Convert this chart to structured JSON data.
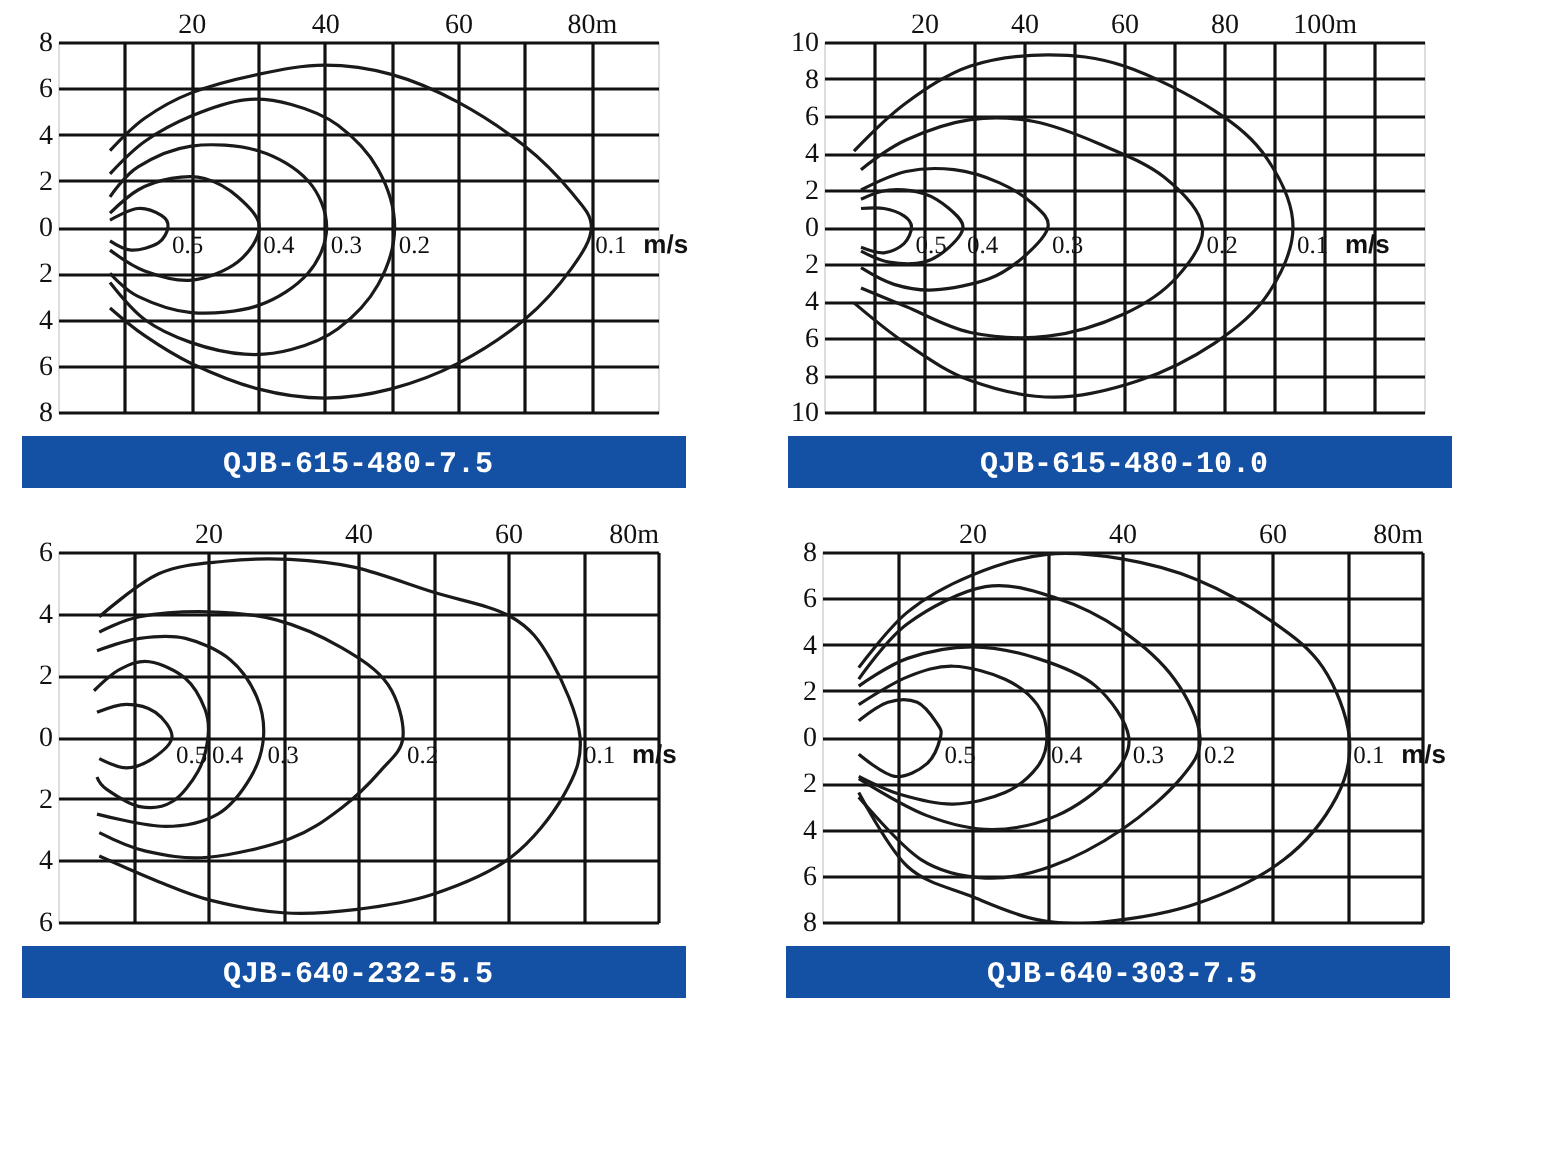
{
  "chart_data": [
    {
      "type": "line",
      "title": "QJB-615-480-7.5",
      "xlim": [
        0,
        90
      ],
      "ylim": [
        -8,
        8
      ],
      "xticks": [
        {
          "value": 10,
          "label": null
        },
        20,
        {
          "value": 30,
          "label": null
        },
        40,
        {
          "value": 50,
          "label": null
        },
        60,
        {
          "value": 70,
          "label": null
        },
        {
          "value": 80,
          "label": "80m"
        }
      ],
      "yticks": [
        {
          "value": -8,
          "label": "8"
        },
        {
          "value": -6,
          "label": "6"
        },
        {
          "value": -4,
          "label": "4"
        },
        {
          "value": -2,
          "label": "2"
        },
        0,
        2,
        4,
        6,
        8
      ],
      "grid": true,
      "line_style": "solid",
      "series": [
        {
          "name": "0.1",
          "color": "#1a1a1a",
          "x": [
            7.8,
            13,
            20,
            30,
            40,
            50,
            60,
            70,
            77,
            80,
            77,
            70,
            60,
            50,
            40,
            30,
            20,
            13,
            7.8
          ],
          "values": [
            3.3,
            4.7,
            5.8,
            6.6,
            7.0,
            6.6,
            5.4,
            3.5,
            1.5,
            0,
            -1.8,
            -4.0,
            -5.9,
            -7.0,
            -7.4,
            -7.0,
            -5.9,
            -4.7,
            -3.5
          ]
        },
        {
          "name": "0.2",
          "color": "#1a1a1a",
          "x": [
            7.8,
            13,
            20,
            28,
            35,
            42,
            48,
            50.5,
            48,
            42,
            35,
            28,
            20,
            13,
            7.8
          ],
          "values": [
            2.3,
            3.7,
            4.8,
            5.5,
            5.3,
            4.4,
            2.5,
            0,
            -2.5,
            -4.4,
            -5.3,
            -5.5,
            -5.0,
            -4.0,
            -2.4
          ]
        },
        {
          "name": "0.3",
          "color": "#1a1a1a",
          "x": [
            7.8,
            12,
            20,
            30,
            37.5,
            40.3,
            37.5,
            30,
            20,
            12,
            7.8
          ],
          "values": [
            1.3,
            2.6,
            3.5,
            3.3,
            2.0,
            0,
            -2.0,
            -3.4,
            -3.7,
            -3.0,
            -2.0
          ]
        },
        {
          "name": "0.4",
          "color": "#1a1a1a",
          "x": [
            7.8,
            12,
            17,
            22,
            27,
            30.2,
            27,
            20,
            13,
            7.8
          ],
          "values": [
            0.6,
            1.6,
            2.1,
            2.1,
            1.3,
            0,
            -1.5,
            -2.3,
            -1.9,
            -1.0
          ]
        },
        {
          "name": "0.5",
          "color": "#1a1a1a",
          "x": [
            7.8,
            12,
            15.5,
            16.5,
            15,
            11,
            7.8
          ],
          "values": [
            0.3,
            0.8,
            0.5,
            0,
            -0.7,
            -1.0,
            -0.6
          ]
        }
      ],
      "annotations": [
        "m/s"
      ]
    },
    {
      "type": "line",
      "title": "QJB-615-480-10.0",
      "xlim": [
        0,
        120
      ],
      "ylim": [
        -10,
        10
      ],
      "xticks": [
        {
          "value": 10,
          "label": null
        },
        20,
        {
          "value": 30,
          "label": null
        },
        40,
        {
          "value": 50,
          "label": null
        },
        60,
        {
          "value": 70,
          "label": null
        },
        80,
        {
          "value": 90,
          "label": null
        },
        {
          "value": 100,
          "label": "100m"
        },
        {
          "value": 110,
          "label": null
        }
      ],
      "yticks": [
        {
          "value": -10,
          "label": "10"
        },
        {
          "value": -8,
          "label": "8"
        },
        {
          "value": -6,
          "label": "6"
        },
        {
          "value": -4,
          "label": "4"
        },
        {
          "value": -2,
          "label": "2"
        },
        0,
        2,
        4,
        6,
        8,
        10
      ],
      "grid": true,
      "line_style": "solid",
      "series": [
        {
          "name": "0.1",
          "color": "#1a1a1a",
          "x": [
            6,
            16.4,
            29.3,
            44.8,
            60,
            78,
            88.6,
            93.8,
            88.6,
            78,
            63,
            46,
            29.3,
            16.4,
            6
          ],
          "values": [
            4.1,
            6.7,
            8.7,
            9.3,
            8.7,
            6.3,
            3.7,
            0,
            -3.7,
            -6.3,
            -8.3,
            -9.2,
            -8.3,
            -6.3,
            -4.1
          ]
        },
        {
          "name": "0.2",
          "color": "#1a1a1a",
          "x": [
            7.4,
            16.4,
            29.3,
            42,
            55,
            68,
            75.7,
            70.6,
            60,
            44.8,
            29.3,
            16.4,
            7.4
          ],
          "values": [
            3.1,
            4.7,
            5.8,
            5.7,
            4.5,
            2.7,
            0,
            -2.7,
            -4.7,
            -5.9,
            -5.7,
            -4.3,
            -3.3
          ]
        },
        {
          "name": "0.3",
          "color": "#1a1a1a",
          "x": [
            7.4,
            16.4,
            26,
            35,
            42,
            44.8,
            40,
            33,
            22,
            14,
            7.4
          ],
          "values": [
            2.0,
            3.0,
            3.1,
            2.4,
            1.2,
            0,
            -1.6,
            -2.8,
            -3.4,
            -3.1,
            -2.2
          ]
        },
        {
          "name": "0.4",
          "color": "#1a1a1a",
          "x": [
            7.4,
            13,
            20,
            25,
            27.8,
            25,
            20,
            13,
            7.4
          ],
          "values": [
            1.5,
            2.0,
            1.8,
            1.0,
            0,
            -1.1,
            -1.9,
            -1.9,
            -1.3
          ]
        },
        {
          "name": "0.5",
          "color": "#1a1a1a",
          "x": [
            7.4,
            12,
            16,
            17.5,
            16,
            12,
            7.4
          ],
          "values": [
            1.0,
            1.0,
            0.6,
            0,
            -0.9,
            -1.4,
            -1.1
          ]
        }
      ],
      "annotations": [
        "m/s"
      ]
    },
    {
      "type": "line",
      "title": "QJB-640-232-5.5",
      "xlim": [
        0,
        80
      ],
      "ylim": [
        -6,
        6
      ],
      "xticks": [
        {
          "value": 10,
          "label": null
        },
        20,
        {
          "value": 30,
          "label": null
        },
        40,
        {
          "value": 50,
          "label": null
        },
        60,
        {
          "value": 70,
          "label": null
        },
        {
          "value": 80,
          "label": "80m"
        }
      ],
      "yticks": [
        {
          "value": -6,
          "label": "6"
        },
        {
          "value": -4,
          "label": "4"
        },
        {
          "value": -2,
          "label": "2"
        },
        0,
        2,
        4,
        6
      ],
      "grid": true,
      "line_style": "solid",
      "series": [
        {
          "name": "0.1",
          "color": "#1a1a1a",
          "x": [
            5.5,
            13.5,
            22.2,
            30.9,
            39.6,
            50,
            60.4,
            65.7,
            69.6,
            67.4,
            60.4,
            50,
            39.6,
            30,
            20.4,
            13.5,
            5.5
          ],
          "values": [
            3.9,
            5.3,
            5.7,
            5.76,
            5.5,
            4.7,
            3.9,
            2.5,
            0,
            -1.9,
            -3.9,
            -5.1,
            -5.6,
            -5.7,
            -5.3,
            -4.7,
            -3.86
          ]
        },
        {
          "name": "0.2",
          "color": "#1a1a1a",
          "x": [
            5.5,
            10.9,
            20,
            29.1,
            37.8,
            44,
            46,
            43,
            37.8,
            30.9,
            20,
            11.7,
            5.5
          ],
          "values": [
            3.4,
            3.9,
            4.06,
            3.8,
            2.9,
            1.7,
            0,
            -1.1,
            -2.3,
            -3.3,
            -3.9,
            -3.7,
            -3.1
          ]
        },
        {
          "name": "0.3",
          "color": "#1a1a1a",
          "x": [
            5.2,
            10.9,
            17,
            23,
            26.5,
            27.4,
            25.7,
            21.3,
            14.3,
            5.2
          ],
          "values": [
            2.8,
            3.2,
            3.2,
            2.5,
            1.3,
            0,
            -1.3,
            -2.5,
            -2.9,
            -2.5
          ]
        },
        {
          "name": "0.4",
          "color": "#1a1a1a",
          "x": [
            4.8,
            8.3,
            12.2,
            17,
            19.6,
            20,
            18.7,
            15.2,
            10.9,
            6.5,
            5.2
          ],
          "values": [
            1.5,
            2.2,
            2.44,
            1.9,
            0.9,
            0,
            -1.1,
            -2.1,
            -2.26,
            -1.7,
            -1.3
          ]
        },
        {
          "name": "0.5",
          "color": "#1a1a1a",
          "x": [
            5.2,
            9.1,
            13,
            15.2,
            12.6,
            9.1,
            5.5
          ],
          "values": [
            0.8,
            1.06,
            0.8,
            0,
            -0.7,
            -1.0,
            -0.7
          ]
        }
      ],
      "annotations": [
        "m/s"
      ]
    },
    {
      "type": "line",
      "title": "QJB-640-303-7.5",
      "xlim": [
        0,
        80
      ],
      "ylim": [
        -8,
        8
      ],
      "xticks": [
        {
          "value": 10,
          "label": null
        },
        20,
        {
          "value": 30,
          "label": null
        },
        40,
        {
          "value": 50,
          "label": null
        },
        60,
        {
          "value": 70,
          "label": null
        },
        {
          "value": 80,
          "label": "80m"
        }
      ],
      "yticks": [
        {
          "value": -8,
          "label": "8"
        },
        {
          "value": -6,
          "label": "6"
        },
        {
          "value": -4,
          "label": "4"
        },
        {
          "value": -2,
          "label": "2"
        },
        0,
        2,
        4,
        6,
        8
      ],
      "grid": true,
      "line_style": "solid",
      "series": [
        {
          "name": "0.1",
          "color": "#1a1a1a",
          "x": [
            4.9,
            11.4,
            20,
            30,
            40,
            50,
            60,
            66.8,
            70.3,
            68.6,
            61.6,
            50,
            37.4,
            28.7,
            20,
            11.4,
            4.9
          ],
          "values": [
            3.0,
            5.4,
            7.0,
            7.9,
            7.7,
            6.8,
            5.0,
            3.0,
            0,
            -2.6,
            -5.3,
            -7.2,
            -8.0,
            -7.9,
            -6.9,
            -5.6,
            -2.4
          ]
        },
        {
          "name": "0.2",
          "color": "#1a1a1a",
          "x": [
            4.9,
            11.4,
            21.8,
            31.3,
            40,
            47,
            50.4,
            47.8,
            40,
            30.5,
            21.8,
            13.2,
            4.9
          ],
          "values": [
            2.5,
            4.9,
            6.5,
            6.0,
            4.6,
            2.5,
            0,
            -1.8,
            -4.0,
            -5.6,
            -6.1,
            -5.3,
            -2.6
          ]
        },
        {
          "name": "0.3",
          "color": "#1a1a1a",
          "x": [
            4.9,
            11.4,
            20,
            28.7,
            36.5,
            40.9,
            38.3,
            31.3,
            22.7,
            14,
            4.9
          ],
          "values": [
            2.2,
            3.4,
            3.9,
            3.4,
            2.2,
            0,
            -1.8,
            -3.4,
            -4.0,
            -3.4,
            -1.8
          ]
        },
        {
          "name": "0.4",
          "color": "#1a1a1a",
          "x": [
            4.9,
            11.4,
            17.5,
            24.4,
            28.7,
            30,
            28.7,
            24.4,
            17.5,
            10.6,
            4.9
          ],
          "values": [
            1.4,
            2.6,
            3.06,
            2.5,
            1.4,
            0,
            -1.3,
            -2.4,
            -2.9,
            -2.5,
            -1.7
          ]
        },
        {
          "name": "0.5",
          "color": "#1a1a1a",
          "x": [
            4.9,
            8.8,
            12.7,
            15.3,
            15.8,
            14,
            9.7,
            4.9
          ],
          "values": [
            0.7,
            1.5,
            1.5,
            0.6,
            0,
            -1.15,
            -1.7,
            -0.75
          ]
        }
      ],
      "annotations": [
        "m/s"
      ]
    }
  ]
}
